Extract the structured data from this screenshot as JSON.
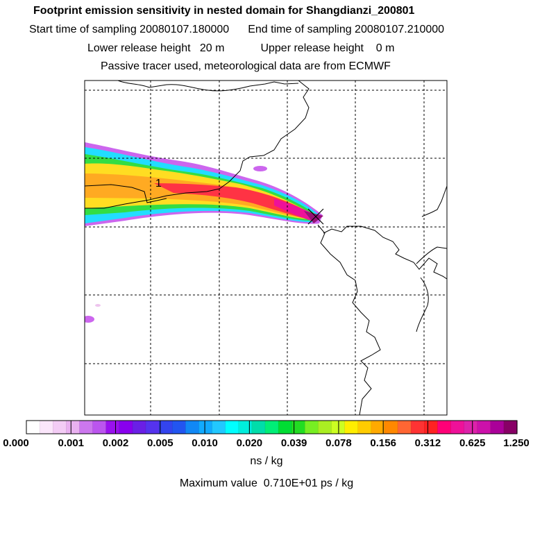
{
  "header": {
    "title": "Footprint emission sensitivity in nested domain for Shangdianzi_200801",
    "start_time": "Start time of sampling 20080107.180000",
    "end_time": "End time of sampling 20080107.210000",
    "lower_height": "Lower release height   20 m",
    "upper_height": "Upper release height    0 m",
    "note": "Passive tracer used, meteorological data are from ECMWF"
  },
  "map": {
    "release_label": "1"
  },
  "colorbar": {
    "ticks": [
      "0.000",
      "0.001",
      "0.002",
      "0.005",
      "0.010",
      "0.020",
      "0.039",
      "0.078",
      "0.156",
      "0.312",
      "0.625",
      "1.250"
    ],
    "unit": "ns / kg",
    "colors": [
      "#ffffff",
      "#fbe6fb",
      "#f3ccf5",
      "#e9b1f0",
      "#cc77ee",
      "#bb55ee",
      "#9911ee",
      "#8800ee",
      "#6a1fe6",
      "#5533ee",
      "#3344ee",
      "#2255f0",
      "#1188f5",
      "#11aaff",
      "#22c8ff",
      "#00ffff",
      "#00eedd",
      "#00ddaa",
      "#00ee77",
      "#00dd33",
      "#22dd22",
      "#77ee22",
      "#aaee22",
      "#ccff22",
      "#ffee00",
      "#ffcc00",
      "#ffaa00",
      "#ff8800",
      "#ff6633",
      "#ff3333",
      "#ff2222",
      "#ff0077",
      "#ee1199",
      "#dd22aa",
      "#cc11aa",
      "#aa0099",
      "#880066"
    ]
  },
  "footer": {
    "max_value": "Maximum value  0.710E+01 ps / kg"
  }
}
